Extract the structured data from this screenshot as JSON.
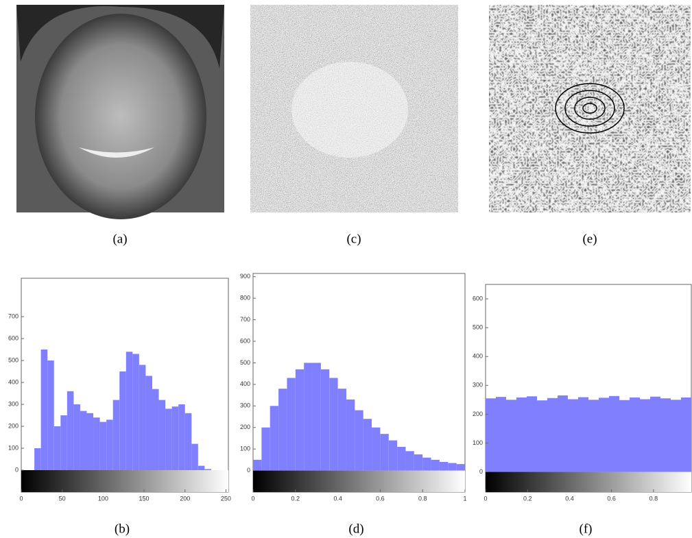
{
  "images": [
    {
      "caption": "(a)"
    },
    {
      "caption": "(c)"
    },
    {
      "caption": "(e)"
    }
  ],
  "chart_data": [
    {
      "type": "histogram",
      "caption": "(b)",
      "color": "#8080ff",
      "bins": [
        0,
        8,
        16,
        24,
        32,
        40,
        48,
        56,
        64,
        72,
        80,
        88,
        96,
        104,
        112,
        120,
        128,
        136,
        144,
        152,
        160,
        168,
        176,
        184,
        192,
        200,
        208,
        216,
        224,
        232,
        240,
        248,
        256
      ],
      "values": [
        0,
        0,
        100,
        550,
        500,
        200,
        250,
        360,
        300,
        270,
        260,
        240,
        220,
        230,
        320,
        450,
        540,
        530,
        480,
        430,
        370,
        320,
        280,
        290,
        300,
        260,
        120,
        20,
        5,
        0,
        0,
        0
      ],
      "xlim": [
        0,
        253
      ],
      "ylim": [
        -100,
        875
      ],
      "xticks": [
        0,
        50,
        100,
        150,
        200,
        250
      ],
      "yticks": [
        0,
        100,
        200,
        300,
        400,
        500,
        600,
        700
      ]
    },
    {
      "type": "histogram",
      "caption": "(d)",
      "color": "#8080ff",
      "bins": [
        0,
        0.04,
        0.08,
        0.12,
        0.16,
        0.2,
        0.24,
        0.28,
        0.32,
        0.36,
        0.4,
        0.44,
        0.48,
        0.52,
        0.56,
        0.6,
        0.64,
        0.68,
        0.72,
        0.76,
        0.8,
        0.84,
        0.88,
        0.92,
        0.96,
        1
      ],
      "values": [
        50,
        200,
        300,
        380,
        430,
        470,
        500,
        500,
        470,
        430,
        380,
        330,
        280,
        240,
        200,
        170,
        140,
        110,
        90,
        75,
        60,
        50,
        40,
        35,
        30
      ],
      "xlim": [
        0,
        1
      ],
      "ylim": [
        -100,
        915
      ],
      "xticks": [
        0,
        0.2,
        0.4,
        0.6,
        0.8,
        1
      ],
      "yticks": [
        0,
        100,
        200,
        300,
        400,
        500,
        600,
        700,
        800,
        900
      ]
    },
    {
      "type": "histogram",
      "caption": "(f)",
      "color": "#8080ff",
      "bins": [
        0,
        0.049,
        0.098,
        0.147,
        0.196,
        0.245,
        0.294,
        0.343,
        0.392,
        0.441,
        0.49,
        0.539,
        0.588,
        0.637,
        0.686,
        0.735,
        0.784,
        0.833,
        0.882,
        0.931,
        0.98
      ],
      "values": [
        255,
        260,
        250,
        258,
        262,
        248,
        256,
        265,
        252,
        259,
        250,
        257,
        263,
        249,
        258,
        252,
        261,
        255,
        250,
        258
      ],
      "xlim": [
        0,
        0.98
      ],
      "ylim": [
        -70,
        650
      ],
      "xticks": [
        0,
        0.2,
        0.4,
        0.6,
        0.8
      ],
      "yticks": [
        0,
        100,
        200,
        300,
        400,
        500,
        600
      ]
    }
  ]
}
